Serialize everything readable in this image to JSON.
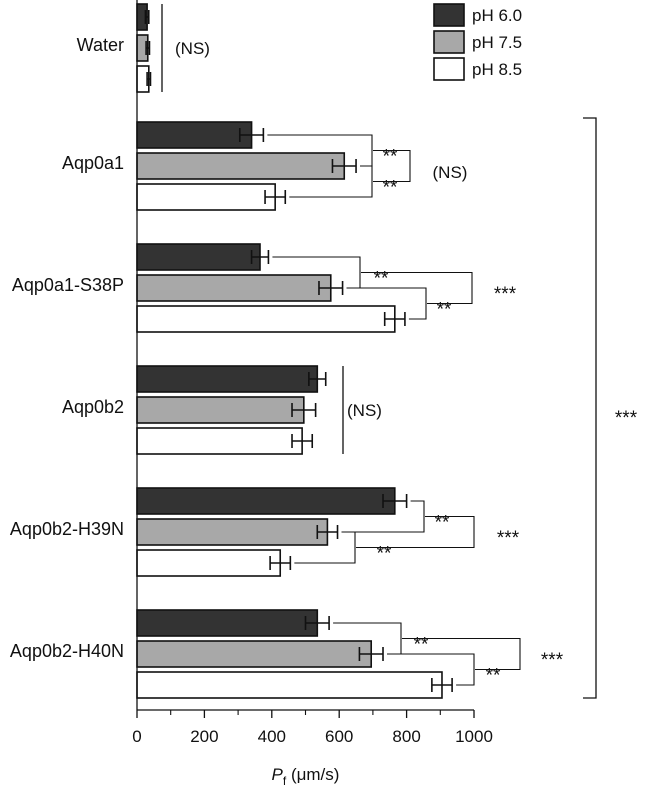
{
  "chart_data": {
    "type": "bar",
    "orientation": "horizontal",
    "xlabel": "P",
    "xlabel_subscript": "f",
    "xlabel_units": " (μm/s)",
    "xlim": [
      0,
      1000
    ],
    "xticks": [
      "0",
      "200",
      "400",
      "600",
      "800",
      "1000"
    ],
    "categories": [
      "Water",
      "Aqp0a1",
      "Aqp0a1-S38P",
      "Aqp0b2",
      "Aqp0b2-H39N",
      "Aqp0b2-H40N"
    ],
    "series": [
      {
        "name": "pH 6.0",
        "color": "#333333",
        "values": [
          30,
          340,
          365,
          535,
          765,
          535
        ],
        "errors": [
          5,
          35,
          25,
          25,
          35,
          35
        ]
      },
      {
        "name": "pH 7.5",
        "color": "#a8a8a8",
        "values": [
          32,
          615,
          575,
          495,
          565,
          695
        ],
        "errors": [
          5,
          35,
          35,
          35,
          30,
          35
        ]
      },
      {
        "name": "pH 8.5",
        "color": "#ffffff",
        "values": [
          35,
          410,
          765,
          490,
          425,
          905
        ],
        "errors": [
          5,
          30,
          30,
          30,
          30,
          30
        ]
      }
    ],
    "legend_position": "top-right",
    "significance": {
      "ns": "(NS)",
      "double": "**",
      "triple": "***"
    }
  }
}
